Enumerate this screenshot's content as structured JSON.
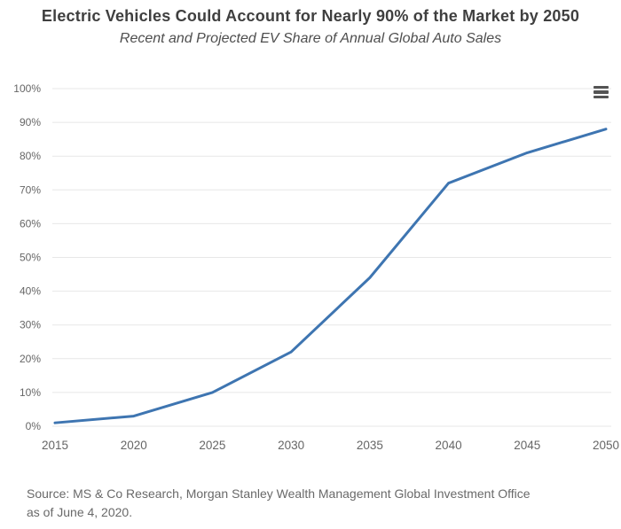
{
  "header": {
    "title": "Electric Vehicles Could Account for Nearly 90% of the Market by 2050",
    "subtitle": "Recent and Projected EV Share of Annual Global Auto Sales"
  },
  "chart_data": {
    "type": "line",
    "title": "Electric Vehicles Could Account for Nearly 90% of the Market by 2050",
    "subtitle": "Recent and Projected EV Share of Annual Global Auto Sales",
    "categories": [
      "2015",
      "2020",
      "2025",
      "2030",
      "2035",
      "2040",
      "2045",
      "2050"
    ],
    "values": [
      1,
      3,
      10,
      22,
      44,
      72,
      81,
      88
    ],
    "xlabel": "",
    "ylabel": "",
    "ylim": [
      0,
      100
    ],
    "yticks": [
      0,
      10,
      20,
      30,
      40,
      50,
      60,
      70,
      80,
      90,
      100
    ],
    "ytick_labels": [
      "0%",
      "10%",
      "20%",
      "30%",
      "40%",
      "50%",
      "60%",
      "70%",
      "80%",
      "90%",
      "100%"
    ],
    "grid": "horizontal",
    "legend": "none",
    "line_color": "#3e75b1",
    "gridline_color": "#e7e7e7",
    "axis_label_color": "#666666"
  },
  "toolbar": {
    "export_menu": "chart context menu"
  },
  "footer": {
    "source_line1": "Source: MS & Co Research, Morgan Stanley Wealth Management Global Investment Office",
    "source_line2": "as of June 4, 2020."
  }
}
